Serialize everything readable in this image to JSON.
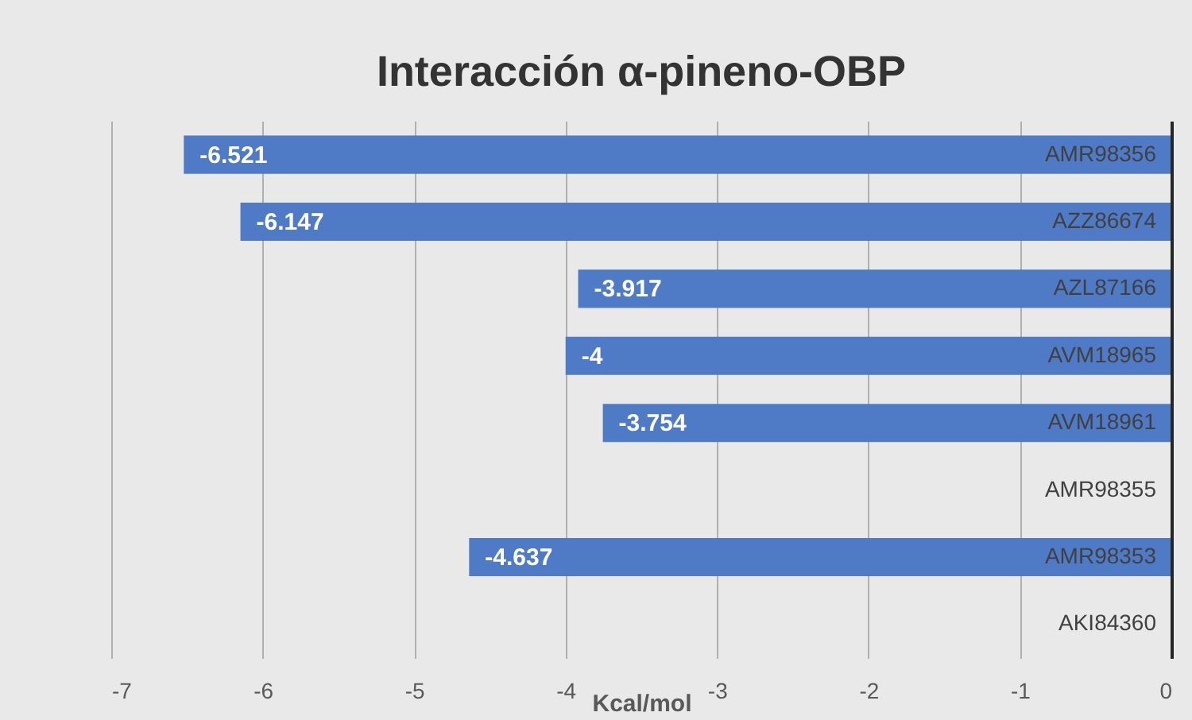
{
  "chart_data": {
    "type": "bar",
    "orientation": "horizontal",
    "title": "Interacción α-pineno-OBP",
    "xlabel": "Kcal/mol",
    "categories": [
      "AMR98356",
      "AZZ86674",
      "AZL87166",
      "AVM18965",
      "AVM18961",
      "AMR98355",
      "AMR98353",
      "AKI84360"
    ],
    "values": [
      -6.521,
      -6.147,
      -3.917,
      -4,
      -3.754,
      null,
      -4.637,
      null
    ],
    "color": "#4f7bc6",
    "xlim": [
      -7,
      0
    ],
    "xticks": [
      -7,
      -6,
      -5,
      -4,
      -3,
      -2,
      -1,
      0
    ],
    "grid": "x",
    "data_labels": true
  }
}
